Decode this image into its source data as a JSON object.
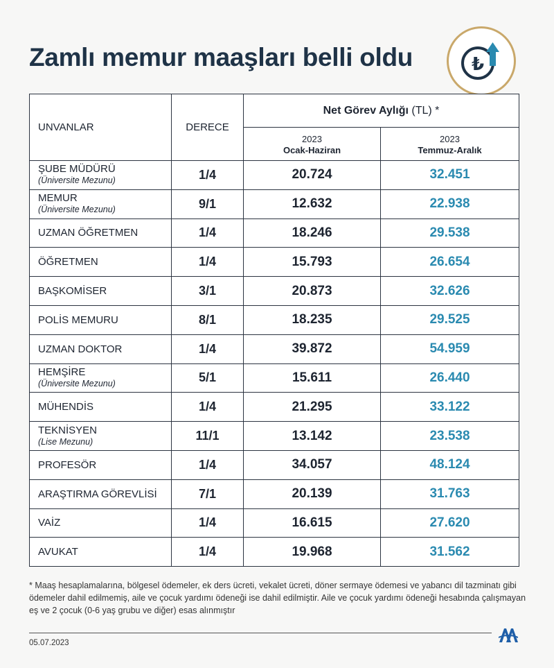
{
  "title": "Zamlı memur maaşları belli oldu",
  "header": {
    "col_unvan": "UNVANLAR",
    "col_derece": "DERECE",
    "group_title_bold": "Net Görev Aylığı",
    "group_title_rest": " (TL) *",
    "col1_year": "2023",
    "col1_period": "Ocak-Haziran",
    "col2_year": "2023",
    "col2_period": "Temmuz-Aralık"
  },
  "rows": [
    {
      "unvan": "ŞUBE MÜDÜRÜ",
      "note": "(Üniversite Mezunu)",
      "derece": "1/4",
      "h1": "20.724",
      "h2": "32.451"
    },
    {
      "unvan": "MEMUR",
      "note": "(Üniversite Mezunu)",
      "derece": "9/1",
      "h1": "12.632",
      "h2": "22.938"
    },
    {
      "unvan": "UZMAN ÖĞRETMEN",
      "note": "",
      "derece": "1/4",
      "h1": "18.246",
      "h2": "29.538"
    },
    {
      "unvan": "ÖĞRETMEN",
      "note": "",
      "derece": "1/4",
      "h1": "15.793",
      "h2": "26.654"
    },
    {
      "unvan": "BAŞKOMİSER",
      "note": "",
      "derece": "3/1",
      "h1": "20.873",
      "h2": "32.626"
    },
    {
      "unvan": "POLİS MEMURU",
      "note": "",
      "derece": "8/1",
      "h1": "18.235",
      "h2": "29.525"
    },
    {
      "unvan": "UZMAN DOKTOR",
      "note": "",
      "derece": "1/4",
      "h1": "39.872",
      "h2": "54.959"
    },
    {
      "unvan": "HEMŞİRE",
      "note": "(Üniversite Mezunu)",
      "derece": "5/1",
      "h1": "15.611",
      "h2": "26.440"
    },
    {
      "unvan": "MÜHENDİS",
      "note": "",
      "derece": "1/4",
      "h1": "21.295",
      "h2": "33.122"
    },
    {
      "unvan": "TEKNİSYEN",
      "note": "(Lise Mezunu)",
      "derece": "11/1",
      "h1": "13.142",
      "h2": "23.538"
    },
    {
      "unvan": "PROFESÖR",
      "note": "",
      "derece": "1/4",
      "h1": "34.057",
      "h2": "48.124"
    },
    {
      "unvan": "ARAŞTIRMA GÖREVLİSİ",
      "note": "",
      "derece": "7/1",
      "h1": "20.139",
      "h2": "31.763"
    },
    {
      "unvan": "VAİZ",
      "note": "",
      "derece": "1/4",
      "h1": "16.615",
      "h2": "27.620"
    },
    {
      "unvan": "AVUKAT",
      "note": "",
      "derece": "1/4",
      "h1": "19.968",
      "h2": "31.562"
    }
  ],
  "footnote": "* Maaş hesaplamalarına, bölgesel ödemeler, ek ders ücreti, vekalet ücreti, döner sermaye ödemesi ve yabancı dil tazminatı gibi ödemeler dahil edilmemiş, aile ve çocuk yardımı ödeneği ise dahil edilmiştir. Aile ve çocuk yardımı ödeneği hesabında çalışmayan eş ve 2 çocuk (0-6 yaş grubu ve diğer) esas alınmıştır",
  "date": "05.07.2023",
  "icons": {
    "badge": "lira-up-arrow-icon",
    "brand": "aa-logo-icon"
  },
  "colors": {
    "title": "#1f3347",
    "accent": "#2a8ab0",
    "gold": "#c9a86a"
  }
}
